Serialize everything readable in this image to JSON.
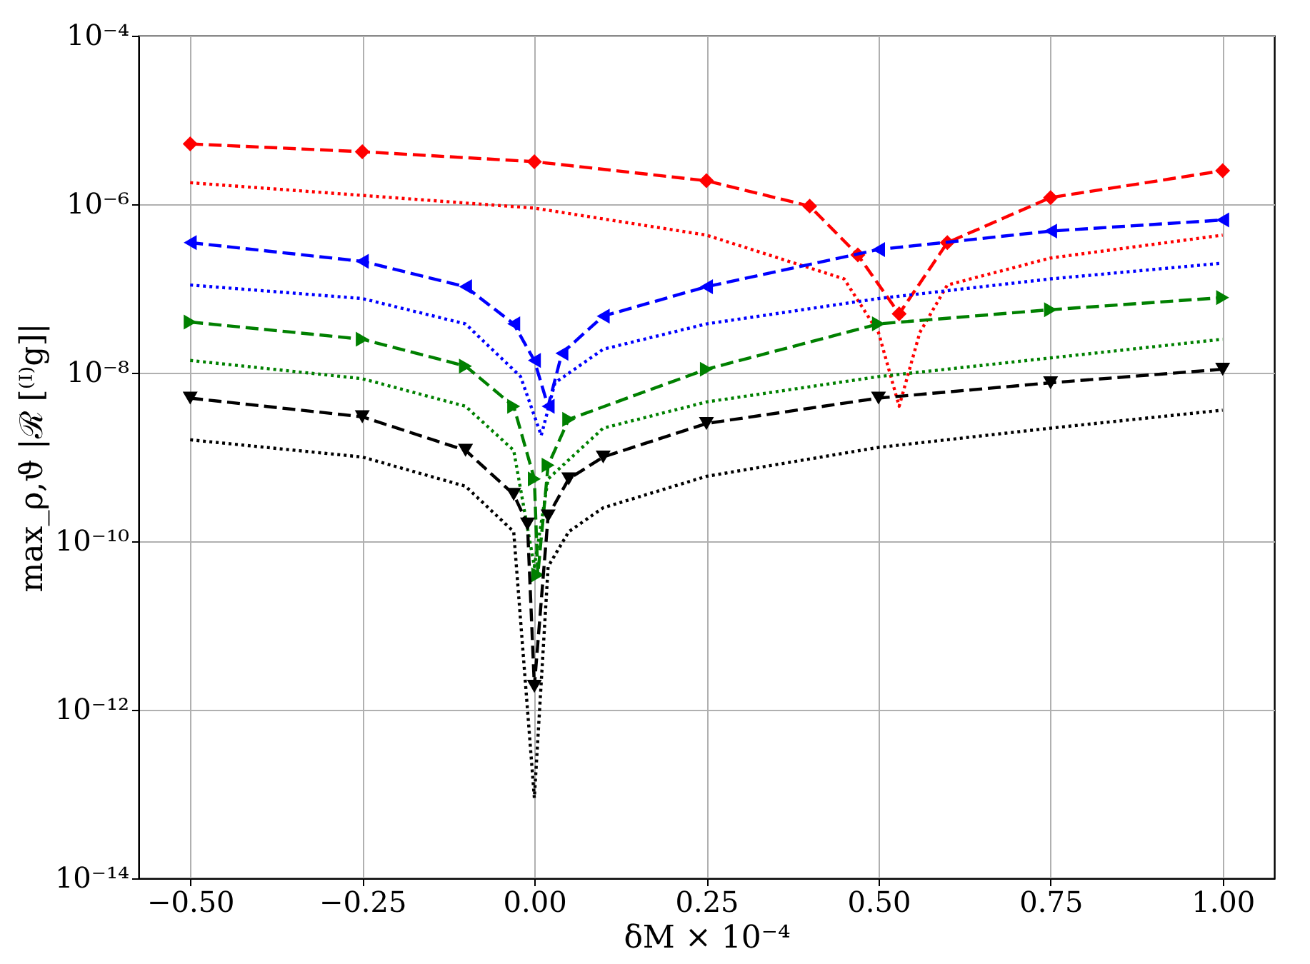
{
  "chart_data": {
    "type": "line",
    "xlabel": "δM × 10⁻⁴",
    "ylabel": "max_ρ,ϑ |ℛ [⁽ᴵ⁾g]|",
    "log": "y",
    "grid": true,
    "xlim": [
      -0.575,
      1.075
    ],
    "ylim": [
      1e-14,
      0.0001
    ],
    "xticks": [
      {
        "value": -0.5,
        "label": "−0.50"
      },
      {
        "value": -0.25,
        "label": "−0.25"
      },
      {
        "value": 0,
        "label": "0.00"
      },
      {
        "value": 0.25,
        "label": "0.25"
      },
      {
        "value": 0.5,
        "label": "0.50"
      },
      {
        "value": 0.75,
        "label": "0.75"
      },
      {
        "value": 1,
        "label": "1.00"
      }
    ],
    "yticks": [
      {
        "value": 1e-14,
        "label": "10⁻¹⁴"
      },
      {
        "value": 1e-12,
        "label": "10⁻¹²"
      },
      {
        "value": 1e-10,
        "label": "10⁻¹⁰"
      },
      {
        "value": 1e-08,
        "label": "10⁻⁸"
      },
      {
        "value": 1e-06,
        "label": "10⁻⁶"
      },
      {
        "value": 0.0001,
        "label": "10⁻⁴"
      }
    ],
    "series": [
      {
        "color": "#ff0000",
        "marker": "diamond",
        "line_style": "dashed",
        "x": [
          -0.5,
          -0.25,
          0,
          0.25,
          0.4,
          0.47,
          0.53,
          0.6,
          0.75,
          1.0
        ],
        "values": [
          5.2e-06,
          4.2e-06,
          3.2e-06,
          1.9e-06,
          9.5e-07,
          2.5e-07,
          5e-08,
          3.5e-07,
          1.2e-06,
          2.5e-06
        ]
      },
      {
        "color": "#ff0000",
        "marker": "none",
        "line_style": "dotted",
        "x": [
          -0.5,
          0,
          0.25,
          0.45,
          0.5,
          0.53,
          0.56,
          0.6,
          0.75,
          1.0
        ],
        "values": [
          1.8e-06,
          9e-07,
          4.3e-07,
          1.3e-07,
          3e-08,
          4e-09,
          3e-08,
          1.1e-07,
          2.3e-07,
          4.3e-07
        ]
      },
      {
        "color": "#0000ff",
        "marker": "triangle-left",
        "line_style": "dashed",
        "x": [
          -0.5,
          -0.25,
          -0.1,
          -0.03,
          0,
          0.02,
          0.04,
          0.1,
          0.25,
          0.5,
          0.75,
          1.0
        ],
        "values": [
          3.5e-07,
          2.1e-07,
          1.05e-07,
          3.8e-08,
          1.4e-08,
          4e-09,
          1.7e-08,
          4.7e-08,
          1.05e-07,
          2.9e-07,
          4.8e-07,
          6.5e-07
        ]
      },
      {
        "color": "#0000ff",
        "marker": "none",
        "line_style": "dotted",
        "x": [
          -0.5,
          -0.25,
          -0.1,
          -0.02,
          0.01,
          0.03,
          0.1,
          0.25,
          0.5,
          0.75,
          1.0
        ],
        "values": [
          1.1e-07,
          7.6e-08,
          3.8e-08,
          9e-09,
          1.8e-09,
          7.6e-09,
          1.9e-08,
          3.8e-08,
          7.6e-08,
          1.3e-07,
          2e-07
        ]
      },
      {
        "color": "#008000",
        "marker": "triangle-right",
        "line_style": "dashed",
        "x": [
          -0.5,
          -0.25,
          -0.1,
          -0.03,
          0,
          0.005,
          0.02,
          0.05,
          0.25,
          0.5,
          0.75,
          1.0
        ],
        "values": [
          4e-08,
          2.5e-08,
          1.2e-08,
          4e-09,
          5.5e-10,
          4e-11,
          8e-10,
          2.8e-09,
          1.1e-08,
          3.8e-08,
          5.6e-08,
          7.8e-08
        ]
      },
      {
        "color": "#008000",
        "marker": "none",
        "line_style": "dotted",
        "x": [
          -0.5,
          -0.25,
          -0.1,
          -0.03,
          0,
          0.02,
          0.1,
          0.25,
          0.5,
          0.75,
          1.0
        ],
        "values": [
          1.4e-08,
          8.5e-09,
          4e-09,
          1.2e-09,
          5e-11,
          5.5e-10,
          2.2e-09,
          4.5e-09,
          9e-09,
          1.5e-08,
          2.5e-08
        ]
      },
      {
        "color": "#000000",
        "marker": "triangle-down",
        "line_style": "dashed",
        "x": [
          -0.5,
          -0.25,
          -0.1,
          -0.03,
          -0.01,
          0,
          0.02,
          0.05,
          0.1,
          0.25,
          0.5,
          0.75,
          1.0
        ],
        "values": [
          5e-09,
          3e-09,
          1.2e-09,
          3.6e-10,
          1.6e-10,
          1.9e-12,
          2e-10,
          5.5e-10,
          1e-09,
          2.5e-09,
          5e-09,
          7.6e-09,
          1.1e-08
        ]
      },
      {
        "color": "#000000",
        "marker": "none",
        "line_style": "dotted",
        "x": [
          -0.5,
          -0.25,
          -0.1,
          -0.03,
          0,
          0.02,
          0.05,
          0.1,
          0.25,
          0.5,
          0.75,
          1.0
        ],
        "values": [
          1.6e-09,
          1e-09,
          4.5e-10,
          1.3e-10,
          9e-14,
          5e-11,
          1.3e-10,
          2.5e-10,
          5.9e-10,
          1.3e-09,
          2.2e-09,
          3.6e-09
        ]
      }
    ]
  }
}
